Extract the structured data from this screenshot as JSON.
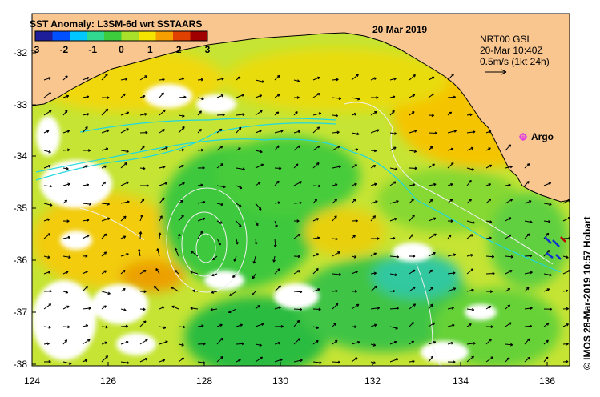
{
  "title": "SST Anomaly: L3SM-6d wrt SSTAARS",
  "date": "20 Mar 2019",
  "colorbar": {
    "ticks": [
      "-3",
      "-2",
      "-1",
      "0",
      "1",
      "2",
      "3"
    ],
    "colors": [
      "#1e1e9a",
      "#0050ff",
      "#00c8ff",
      "#30d890",
      "#3ccc3c",
      "#a8e02a",
      "#f5e400",
      "#f5a000",
      "#e04000",
      "#a00000"
    ]
  },
  "info": {
    "source": "NRT00 GSL",
    "time": "20-Mar 10:40Z",
    "scale": "0.5m/s (1kt 24h)"
  },
  "argo_label": "Argo",
  "credit": "© IMOS 28-Mar-2019 10:57 Hobart",
  "y_ticks": [
    "-32",
    "-33",
    "-34",
    "-35",
    "-36",
    "-37",
    "-38"
  ],
  "x_ticks": [
    "124",
    "126",
    "128",
    "130",
    "132",
    "134",
    "136"
  ],
  "colors": {
    "land": "#f9c690",
    "argo": "#e040e0",
    "contour": "#f0f0f0",
    "coastline": "#000000"
  }
}
